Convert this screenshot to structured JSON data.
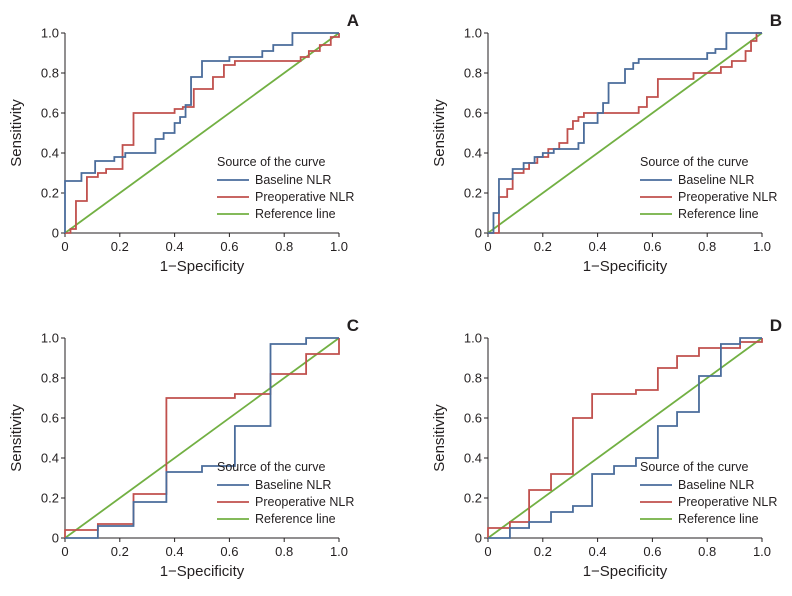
{
  "legend": {
    "title": "Source of the curve",
    "entries": [
      {
        "name": "Baseline NLR",
        "color": "#4a6c9b"
      },
      {
        "name": "Preoperative NLR",
        "color": "#c0504d"
      },
      {
        "name": "Reference line",
        "color": "#72b043"
      }
    ]
  },
  "chart_data": [
    {
      "type": "line",
      "panel": "A",
      "xlabel": "1−Specificity",
      "ylabel": "Sensitivity",
      "xlim": [
        0,
        1.0
      ],
      "ylim": [
        0,
        1.0
      ],
      "xticks": [
        "0",
        "0.2",
        "0.4",
        "0.6",
        "0.8",
        "1.0"
      ],
      "yticks": [
        "0",
        "0.2",
        "0.4",
        "0.6",
        "0.8",
        "1.0"
      ],
      "series": [
        {
          "name": "Baseline NLR",
          "color": "#4a6c9b",
          "points": [
            [
              0,
              0
            ],
            [
              0,
              0.26
            ],
            [
              0.06,
              0.26
            ],
            [
              0.06,
              0.3
            ],
            [
              0.11,
              0.3
            ],
            [
              0.11,
              0.36
            ],
            [
              0.18,
              0.36
            ],
            [
              0.18,
              0.38
            ],
            [
              0.22,
              0.38
            ],
            [
              0.22,
              0.4
            ],
            [
              0.33,
              0.4
            ],
            [
              0.33,
              0.47
            ],
            [
              0.36,
              0.47
            ],
            [
              0.36,
              0.5
            ],
            [
              0.4,
              0.5
            ],
            [
              0.4,
              0.55
            ],
            [
              0.42,
              0.55
            ],
            [
              0.42,
              0.58
            ],
            [
              0.44,
              0.58
            ],
            [
              0.44,
              0.64
            ],
            [
              0.46,
              0.64
            ],
            [
              0.46,
              0.78
            ],
            [
              0.5,
              0.78
            ],
            [
              0.5,
              0.86
            ],
            [
              0.6,
              0.86
            ],
            [
              0.6,
              0.88
            ],
            [
              0.72,
              0.88
            ],
            [
              0.72,
              0.91
            ],
            [
              0.76,
              0.91
            ],
            [
              0.76,
              0.94
            ],
            [
              0.83,
              0.94
            ],
            [
              0.83,
              1.0
            ],
            [
              1.0,
              1.0
            ]
          ]
        },
        {
          "name": "Preoperative NLR",
          "color": "#c0504d",
          "points": [
            [
              0,
              0
            ],
            [
              0.02,
              0
            ],
            [
              0.02,
              0.02
            ],
            [
              0.04,
              0.02
            ],
            [
              0.04,
              0.16
            ],
            [
              0.08,
              0.16
            ],
            [
              0.08,
              0.28
            ],
            [
              0.12,
              0.28
            ],
            [
              0.12,
              0.3
            ],
            [
              0.15,
              0.3
            ],
            [
              0.15,
              0.32
            ],
            [
              0.21,
              0.32
            ],
            [
              0.21,
              0.44
            ],
            [
              0.25,
              0.44
            ],
            [
              0.25,
              0.6
            ],
            [
              0.4,
              0.6
            ],
            [
              0.4,
              0.62
            ],
            [
              0.43,
              0.62
            ],
            [
              0.43,
              0.63
            ],
            [
              0.47,
              0.63
            ],
            [
              0.47,
              0.72
            ],
            [
              0.54,
              0.72
            ],
            [
              0.54,
              0.78
            ],
            [
              0.58,
              0.78
            ],
            [
              0.58,
              0.84
            ],
            [
              0.62,
              0.84
            ],
            [
              0.62,
              0.86
            ],
            [
              0.86,
              0.86
            ],
            [
              0.86,
              0.88
            ],
            [
              0.89,
              0.88
            ],
            [
              0.89,
              0.91
            ],
            [
              0.93,
              0.91
            ],
            [
              0.93,
              0.94
            ],
            [
              0.97,
              0.94
            ],
            [
              0.97,
              0.98
            ],
            [
              1.0,
              0.98
            ],
            [
              1.0,
              1.0
            ]
          ]
        },
        {
          "name": "Reference line",
          "color": "#72b043",
          "points": [
            [
              0,
              0
            ],
            [
              1,
              1
            ]
          ]
        }
      ]
    },
    {
      "type": "line",
      "panel": "B",
      "xlabel": "1−Specificity",
      "ylabel": "Sensitivity",
      "xlim": [
        0,
        1.0
      ],
      "ylim": [
        0,
        1.0
      ],
      "xticks": [
        "0",
        "0.2",
        "0.4",
        "0.6",
        "0.8",
        "1.0"
      ],
      "yticks": [
        "0",
        "0.2",
        "0.4",
        "0.6",
        "0.8",
        "1.0"
      ],
      "series": [
        {
          "name": "Baseline NLR",
          "color": "#4a6c9b",
          "points": [
            [
              0,
              0
            ],
            [
              0.02,
              0
            ],
            [
              0.02,
              0.1
            ],
            [
              0.04,
              0.1
            ],
            [
              0.04,
              0.27
            ],
            [
              0.09,
              0.27
            ],
            [
              0.09,
              0.32
            ],
            [
              0.13,
              0.32
            ],
            [
              0.13,
              0.35
            ],
            [
              0.17,
              0.35
            ],
            [
              0.17,
              0.38
            ],
            [
              0.2,
              0.38
            ],
            [
              0.2,
              0.4
            ],
            [
              0.24,
              0.4
            ],
            [
              0.24,
              0.42
            ],
            [
              0.33,
              0.42
            ],
            [
              0.33,
              0.45
            ],
            [
              0.35,
              0.45
            ],
            [
              0.35,
              0.55
            ],
            [
              0.4,
              0.55
            ],
            [
              0.4,
              0.6
            ],
            [
              0.42,
              0.6
            ],
            [
              0.42,
              0.65
            ],
            [
              0.44,
              0.65
            ],
            [
              0.44,
              0.75
            ],
            [
              0.5,
              0.75
            ],
            [
              0.5,
              0.82
            ],
            [
              0.53,
              0.82
            ],
            [
              0.53,
              0.85
            ],
            [
              0.55,
              0.85
            ],
            [
              0.55,
              0.87
            ],
            [
              0.8,
              0.87
            ],
            [
              0.8,
              0.9
            ],
            [
              0.83,
              0.9
            ],
            [
              0.83,
              0.92
            ],
            [
              0.87,
              0.92
            ],
            [
              0.87,
              1.0
            ],
            [
              1.0,
              1.0
            ]
          ]
        },
        {
          "name": "Preoperative NLR",
          "color": "#c0504d",
          "points": [
            [
              0,
              0
            ],
            [
              0.04,
              0
            ],
            [
              0.04,
              0.18
            ],
            [
              0.07,
              0.18
            ],
            [
              0.07,
              0.22
            ],
            [
              0.09,
              0.22
            ],
            [
              0.09,
              0.3
            ],
            [
              0.13,
              0.3
            ],
            [
              0.13,
              0.32
            ],
            [
              0.15,
              0.32
            ],
            [
              0.15,
              0.35
            ],
            [
              0.18,
              0.35
            ],
            [
              0.18,
              0.38
            ],
            [
              0.22,
              0.38
            ],
            [
              0.22,
              0.42
            ],
            [
              0.26,
              0.42
            ],
            [
              0.26,
              0.45
            ],
            [
              0.29,
              0.45
            ],
            [
              0.29,
              0.52
            ],
            [
              0.31,
              0.52
            ],
            [
              0.31,
              0.56
            ],
            [
              0.33,
              0.56
            ],
            [
              0.33,
              0.58
            ],
            [
              0.35,
              0.58
            ],
            [
              0.35,
              0.6
            ],
            [
              0.55,
              0.6
            ],
            [
              0.55,
              0.63
            ],
            [
              0.58,
              0.63
            ],
            [
              0.58,
              0.68
            ],
            [
              0.62,
              0.68
            ],
            [
              0.62,
              0.77
            ],
            [
              0.75,
              0.77
            ],
            [
              0.75,
              0.8
            ],
            [
              0.85,
              0.8
            ],
            [
              0.85,
              0.83
            ],
            [
              0.89,
              0.83
            ],
            [
              0.89,
              0.86
            ],
            [
              0.94,
              0.86
            ],
            [
              0.94,
              0.91
            ],
            [
              0.96,
              0.91
            ],
            [
              0.96,
              0.96
            ],
            [
              0.98,
              0.96
            ],
            [
              0.98,
              1.0
            ],
            [
              1.0,
              1.0
            ]
          ]
        },
        {
          "name": "Reference line",
          "color": "#72b043",
          "points": [
            [
              0,
              0
            ],
            [
              1,
              1
            ]
          ]
        }
      ]
    },
    {
      "type": "line",
      "panel": "C",
      "xlabel": "1−Specificity",
      "ylabel": "Sensitivity",
      "xlim": [
        0,
        1.0
      ],
      "ylim": [
        0,
        1.0
      ],
      "xticks": [
        "0",
        "0.2",
        "0.4",
        "0.6",
        "0.8",
        "1.0"
      ],
      "yticks": [
        "0",
        "0.2",
        "0.4",
        "0.6",
        "0.8",
        "1.0"
      ],
      "series": [
        {
          "name": "Baseline NLR",
          "color": "#4a6c9b",
          "points": [
            [
              0,
              0
            ],
            [
              0.12,
              0
            ],
            [
              0.12,
              0.06
            ],
            [
              0.25,
              0.06
            ],
            [
              0.25,
              0.18
            ],
            [
              0.37,
              0.18
            ],
            [
              0.37,
              0.33
            ],
            [
              0.5,
              0.33
            ],
            [
              0.5,
              0.36
            ],
            [
              0.62,
              0.36
            ],
            [
              0.62,
              0.56
            ],
            [
              0.75,
              0.56
            ],
            [
              0.75,
              0.97
            ],
            [
              0.88,
              0.97
            ],
            [
              0.88,
              1.0
            ],
            [
              1.0,
              1.0
            ]
          ]
        },
        {
          "name": "Preoperative NLR",
          "color": "#c0504d",
          "points": [
            [
              0,
              0
            ],
            [
              0,
              0.04
            ],
            [
              0.12,
              0.04
            ],
            [
              0.12,
              0.07
            ],
            [
              0.25,
              0.07
            ],
            [
              0.25,
              0.22
            ],
            [
              0.37,
              0.22
            ],
            [
              0.37,
              0.7
            ],
            [
              0.62,
              0.7
            ],
            [
              0.62,
              0.72
            ],
            [
              0.75,
              0.72
            ],
            [
              0.75,
              0.82
            ],
            [
              0.88,
              0.82
            ],
            [
              0.88,
              0.92
            ],
            [
              1.0,
              0.92
            ],
            [
              1.0,
              1.0
            ]
          ]
        },
        {
          "name": "Reference line",
          "color": "#72b043",
          "points": [
            [
              0,
              0
            ],
            [
              1,
              1
            ]
          ]
        }
      ]
    },
    {
      "type": "line",
      "panel": "D",
      "xlabel": "1−Specificity",
      "ylabel": "Sensitivity",
      "xlim": [
        0,
        1.0
      ],
      "ylim": [
        0,
        1.0
      ],
      "xticks": [
        "0",
        "0.2",
        "0.4",
        "0.6",
        "0.8",
        "1.0"
      ],
      "yticks": [
        "0",
        "0.2",
        "0.4",
        "0.6",
        "0.8",
        "1.0"
      ],
      "series": [
        {
          "name": "Baseline NLR",
          "color": "#4a6c9b",
          "points": [
            [
              0,
              0
            ],
            [
              0.08,
              0
            ],
            [
              0.08,
              0.05
            ],
            [
              0.15,
              0.05
            ],
            [
              0.15,
              0.08
            ],
            [
              0.23,
              0.08
            ],
            [
              0.23,
              0.13
            ],
            [
              0.31,
              0.13
            ],
            [
              0.31,
              0.16
            ],
            [
              0.38,
              0.16
            ],
            [
              0.38,
              0.32
            ],
            [
              0.46,
              0.32
            ],
            [
              0.46,
              0.36
            ],
            [
              0.54,
              0.36
            ],
            [
              0.54,
              0.4
            ],
            [
              0.62,
              0.4
            ],
            [
              0.62,
              0.56
            ],
            [
              0.69,
              0.56
            ],
            [
              0.69,
              0.63
            ],
            [
              0.77,
              0.63
            ],
            [
              0.77,
              0.81
            ],
            [
              0.85,
              0.81
            ],
            [
              0.85,
              0.97
            ],
            [
              0.92,
              0.97
            ],
            [
              0.92,
              1.0
            ],
            [
              1.0,
              1.0
            ]
          ]
        },
        {
          "name": "Preoperative NLR",
          "color": "#c0504d",
          "points": [
            [
              0,
              0
            ],
            [
              0,
              0.05
            ],
            [
              0.08,
              0.05
            ],
            [
              0.08,
              0.08
            ],
            [
              0.15,
              0.08
            ],
            [
              0.15,
              0.24
            ],
            [
              0.23,
              0.24
            ],
            [
              0.23,
              0.32
            ],
            [
              0.31,
              0.32
            ],
            [
              0.31,
              0.6
            ],
            [
              0.38,
              0.6
            ],
            [
              0.38,
              0.72
            ],
            [
              0.54,
              0.72
            ],
            [
              0.54,
              0.74
            ],
            [
              0.62,
              0.74
            ],
            [
              0.62,
              0.85
            ],
            [
              0.69,
              0.85
            ],
            [
              0.69,
              0.91
            ],
            [
              0.77,
              0.91
            ],
            [
              0.77,
              0.95
            ],
            [
              0.92,
              0.95
            ],
            [
              0.92,
              0.98
            ],
            [
              1.0,
              0.98
            ],
            [
              1.0,
              1.0
            ]
          ]
        },
        {
          "name": "Reference line",
          "color": "#72b043",
          "points": [
            [
              0,
              0
            ],
            [
              1,
              1
            ]
          ]
        }
      ]
    }
  ]
}
